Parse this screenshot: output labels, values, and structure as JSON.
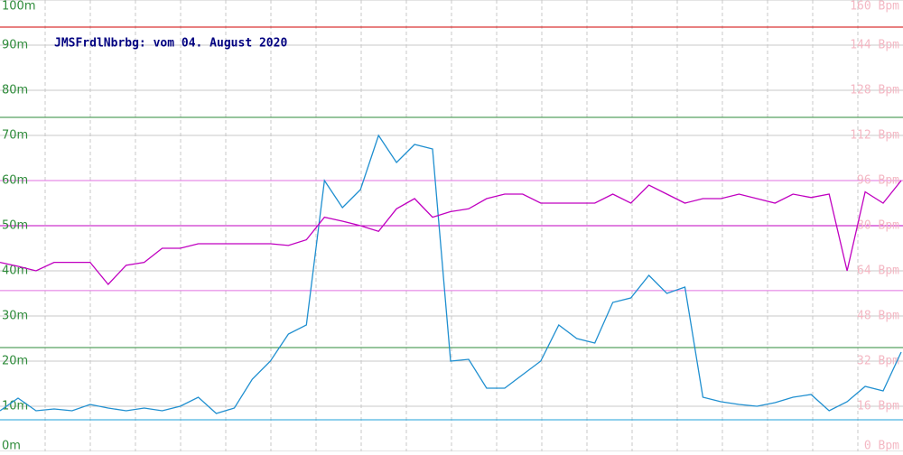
{
  "chart_data": {
    "type": "line",
    "title": "JMSFrdlNbrbg: vom 04. August 2020",
    "ylim": [
      0,
      100
    ],
    "yticks": [
      {
        "value": 0,
        "label": "0m"
      },
      {
        "value": 10,
        "label": "10m"
      },
      {
        "value": 20,
        "label": "20m"
      },
      {
        "value": 30,
        "label": "30m"
      },
      {
        "value": 40,
        "label": "40m"
      },
      {
        "value": 50,
        "label": "50m"
      },
      {
        "value": 60,
        "label": "60m"
      },
      {
        "value": 70,
        "label": "70m"
      },
      {
        "value": 80,
        "label": "80m"
      },
      {
        "value": 90,
        "label": "90m"
      },
      {
        "value": 100,
        "label": "100m"
      }
    ],
    "y2lim": [
      0,
      160
    ],
    "y2ticks": [
      {
        "value": 0,
        "label": "0 Bpm"
      },
      {
        "value": 16,
        "label": "16 Bpm"
      },
      {
        "value": 32,
        "label": "32 Bpm"
      },
      {
        "value": 48,
        "label": "48 Bpm"
      },
      {
        "value": 64,
        "label": "64 Bpm"
      },
      {
        "value": 80,
        "label": "80 Bpm"
      },
      {
        "value": 96,
        "label": "96 Bpm"
      },
      {
        "value": 112,
        "label": "112 Bpm"
      },
      {
        "value": 128,
        "label": "128 Bpm"
      },
      {
        "value": 144,
        "label": "144 Bpm"
      },
      {
        "value": 160,
        "label": "160 Bpm"
      }
    ],
    "grid": true,
    "reference_lines": [
      {
        "value": 94,
        "color": "#d00000",
        "axis": "y"
      },
      {
        "value": 74,
        "color": "#2e8b3a",
        "axis": "y"
      },
      {
        "value": 23,
        "color": "#2e8b3a",
        "axis": "y"
      },
      {
        "value": 7,
        "color": "#1fa0d8",
        "axis": "y"
      },
      {
        "value": 96,
        "color": "#e070e0",
        "axis": "y2"
      },
      {
        "value": 80,
        "color": "#c000c0",
        "axis": "y2"
      },
      {
        "value": 57,
        "color": "#e070e0",
        "axis": "y2"
      }
    ],
    "series": [
      {
        "color": "#1f8fd0",
        "axis": "y",
        "values": [
          9,
          11.8,
          9,
          9.4,
          9,
          10.4,
          9.6,
          9,
          9.6,
          9,
          10,
          12,
          8.4,
          9.6,
          16,
          20,
          26,
          28,
          60,
          54,
          58,
          70,
          64,
          68,
          67,
          20,
          20.4,
          14,
          14,
          17,
          20,
          28,
          25,
          24,
          33,
          34,
          39,
          35,
          36.4,
          12,
          11,
          10.4,
          10,
          10.8,
          12,
          12.6,
          9,
          11,
          14.4,
          13.4,
          22
        ]
      },
      {
        "color": "#c000c0",
        "axis": "y2",
        "values": [
          67,
          65.6,
          64,
          67,
          67,
          67,
          59.2,
          66,
          67,
          72,
          72,
          73.6,
          73.6,
          73.6,
          73.6,
          73.6,
          73,
          75,
          83,
          81.6,
          80,
          78,
          86,
          89.6,
          83,
          85,
          86,
          89.6,
          91.2,
          91.2,
          88,
          88,
          88,
          88,
          91.2,
          88,
          94.4,
          91.2,
          88,
          89.6,
          89.6,
          91.2,
          89.6,
          88,
          91.2,
          90,
          91.2,
          64,
          92,
          88,
          96
        ]
      }
    ]
  }
}
